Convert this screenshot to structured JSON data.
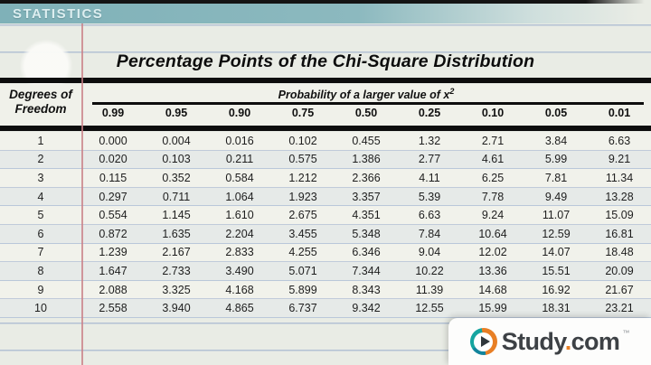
{
  "top_bar": {
    "label": "STATISTICS"
  },
  "table": {
    "title": "Percentage Points of the Chi-Square Distribution",
    "row_header_line1": "Degrees of",
    "row_header_line2": "Freedom",
    "col_group_label": "Probability of a larger value of x",
    "col_group_sup": "2",
    "columns": [
      "0.99",
      "0.95",
      "0.90",
      "0.75",
      "0.50",
      "0.25",
      "0.10",
      "0.05",
      "0.01"
    ],
    "rows": [
      {
        "df": "1",
        "values": [
          "0.000",
          "0.004",
          "0.016",
          "0.102",
          "0.455",
          "1.32",
          "2.71",
          "3.84",
          "6.63"
        ]
      },
      {
        "df": "2",
        "values": [
          "0.020",
          "0.103",
          "0.211",
          "0.575",
          "1.386",
          "2.77",
          "4.61",
          "5.99",
          "9.21"
        ]
      },
      {
        "df": "3",
        "values": [
          "0.115",
          "0.352",
          "0.584",
          "1.212",
          "2.366",
          "4.11",
          "6.25",
          "7.81",
          "11.34"
        ]
      },
      {
        "df": "4",
        "values": [
          "0.297",
          "0.711",
          "1.064",
          "1.923",
          "3.357",
          "5.39",
          "7.78",
          "9.49",
          "13.28"
        ]
      },
      {
        "df": "5",
        "values": [
          "0.554",
          "1.145",
          "1.610",
          "2.675",
          "4.351",
          "6.63",
          "9.24",
          "11.07",
          "15.09"
        ]
      },
      {
        "df": "6",
        "values": [
          "0.872",
          "1.635",
          "2.204",
          "3.455",
          "5.348",
          "7.84",
          "10.64",
          "12.59",
          "16.81"
        ]
      },
      {
        "df": "7",
        "values": [
          "1.239",
          "2.167",
          "2.833",
          "4.255",
          "6.346",
          "9.04",
          "12.02",
          "14.07",
          "18.48"
        ]
      },
      {
        "df": "8",
        "values": [
          "1.647",
          "2.733",
          "3.490",
          "5.071",
          "7.344",
          "10.22",
          "13.36",
          "15.51",
          "20.09"
        ]
      },
      {
        "df": "9",
        "values": [
          "2.088",
          "3.325",
          "4.168",
          "5.899",
          "8.343",
          "11.39",
          "14.68",
          "16.92",
          "21.67"
        ]
      },
      {
        "df": "10",
        "values": [
          "2.558",
          "3.940",
          "4.865",
          "6.737",
          "9.342",
          "12.55",
          "15.99",
          "18.31",
          "23.21"
        ]
      }
    ]
  },
  "watermark": {
    "brand_prefix": "Study",
    "brand_dot": ".",
    "brand_suffix": "com",
    "trademark": "™"
  },
  "colors": {
    "teal_bar": "#7fb1b8",
    "paper": "#e9ece5",
    "margin_pink": "#c97f86",
    "line_blue": "#7d96c3",
    "rule_black": "#0d0d0d",
    "brand_orange": "#e87f25",
    "brand_teal": "#16a5a0",
    "brand_text": "#3d4145"
  }
}
